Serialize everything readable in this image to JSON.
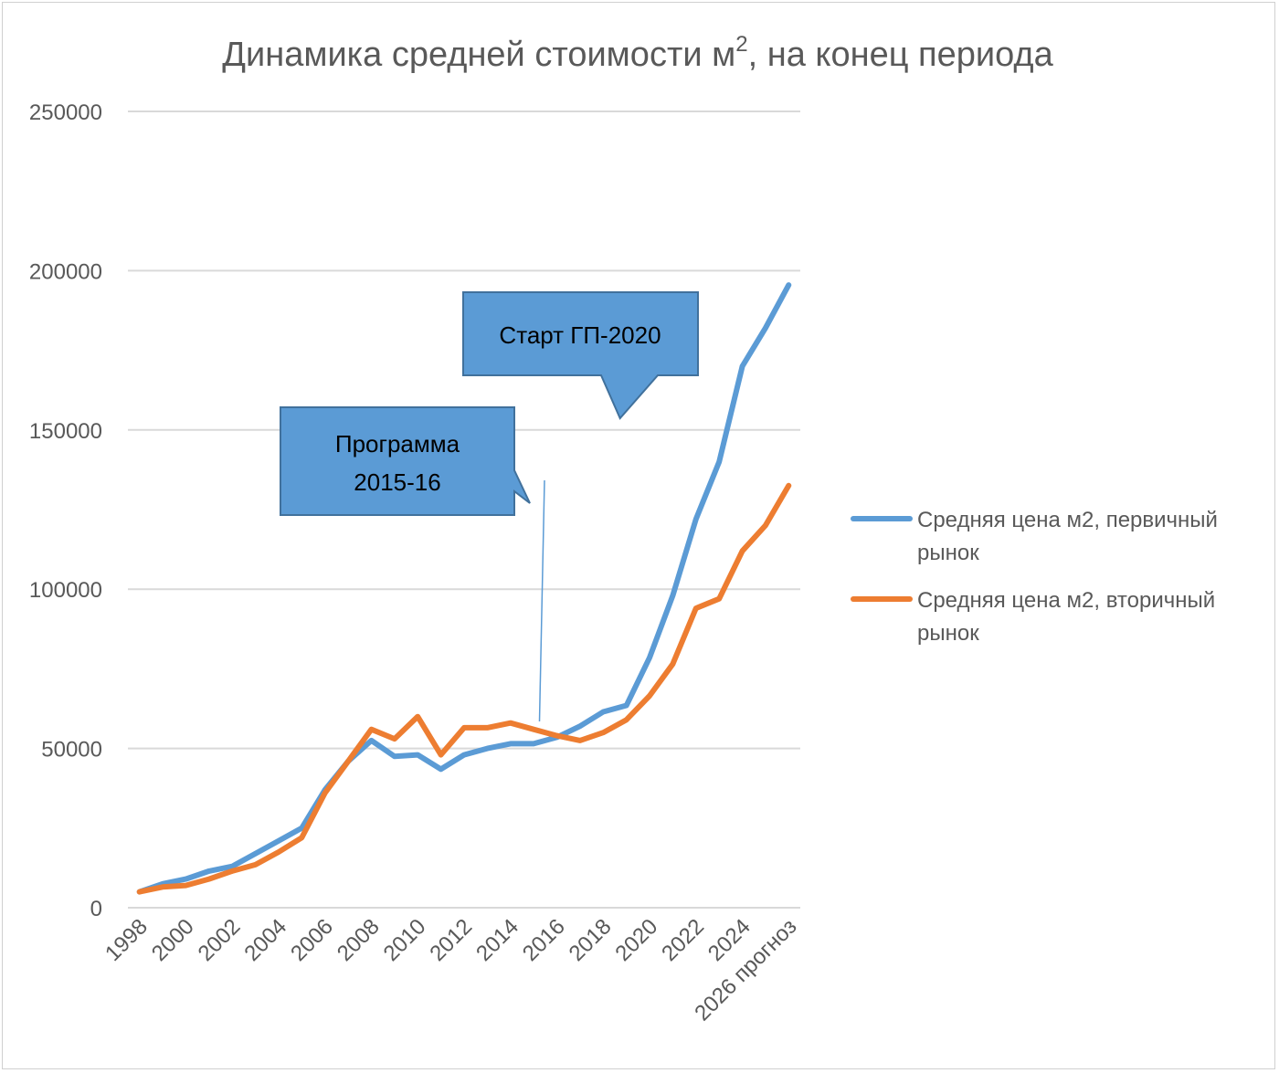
{
  "chart_data": {
    "type": "line",
    "title_main": "Динамика средней стоимости м",
    "title_sup": "2",
    "title_rest": ", на конец периода",
    "xlabel": "",
    "ylabel": "",
    "ylim": [
      0,
      250000
    ],
    "yticks": [
      "250000",
      "200000",
      "150000",
      "100000",
      "50000",
      "0"
    ],
    "grid": true,
    "legend_position": "right",
    "x": [
      "1998",
      "1999",
      "2000",
      "2001",
      "2002",
      "2003",
      "2004",
      "2005",
      "2006",
      "2007",
      "2008",
      "2009",
      "2010",
      "2011",
      "2012",
      "2013",
      "2014",
      "2015",
      "2016",
      "2017",
      "2018",
      "2019",
      "2020",
      "2021",
      "2022",
      "2023",
      "2024",
      "2025",
      "2026 прогноз"
    ],
    "xtick_labels": [
      "1998",
      "2000",
      "2002",
      "2004",
      "2006",
      "2008",
      "2010",
      "2012",
      "2014",
      "2016",
      "2018",
      "2020",
      "2022",
      "2024",
      "2026 прогноз"
    ],
    "series": [
      {
        "name": "Средняя цена м2, первичный рынок",
        "color": "#5B9BD5",
        "values": [
          5000,
          7500,
          9000,
          11500,
          13000,
          17000,
          21000,
          25000,
          37000,
          46000,
          52500,
          47500,
          48000,
          43500,
          48000,
          50000,
          51500,
          51500,
          53500,
          57000,
          61500,
          63500,
          78500,
          98000,
          122000,
          140000,
          170000,
          182000,
          195500
        ]
      },
      {
        "name": "Средняя цена м2, вторичный рынок",
        "color": "#ED7D31",
        "values": [
          5000,
          6500,
          7000,
          9000,
          11500,
          13500,
          17500,
          22000,
          36000,
          46000,
          56000,
          53000,
          60000,
          48000,
          56500,
          56500,
          58000,
          56000,
          54000,
          52500,
          55000,
          59000,
          66500,
          76500,
          94000,
          97000,
          112000,
          120000,
          132500
        ]
      }
    ],
    "legend_lines": [
      [
        "Средняя цена м2, первичный",
        "рынок"
      ],
      [
        "Средняя цена м2, вторичный",
        "рынок"
      ]
    ],
    "annotations": [
      {
        "lines": [
          "Старт ГП-2020"
        ],
        "pointer_year": "2019"
      },
      {
        "lines": [
          "Программа",
          "2015-16"
        ],
        "pointer_year": "2016"
      }
    ]
  }
}
